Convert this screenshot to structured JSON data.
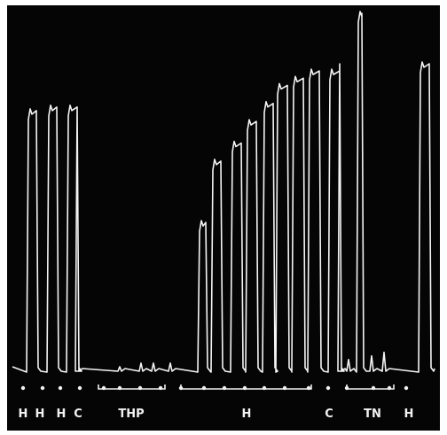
{
  "chart_data": {
    "type": "line",
    "title": "",
    "xlabel": "",
    "ylabel": "",
    "grid": false,
    "trace_color": "#f4f4f4",
    "background_color": "#050505",
    "legend": "none",
    "stimulus_labels": [
      "H",
      "H",
      "H",
      "C",
      "THP",
      "H",
      "C",
      "TN",
      "H"
    ],
    "response_peaks": [
      0.73,
      0.74,
      0.74,
      0.73,
      0.01,
      0.02,
      0.02,
      0.02,
      0.42,
      0.59,
      0.64,
      0.7,
      0.75,
      0.8,
      0.82,
      0.84,
      0.84,
      0.85,
      0.03,
      1.0,
      0.04,
      0.05,
      0.86
    ]
  }
}
